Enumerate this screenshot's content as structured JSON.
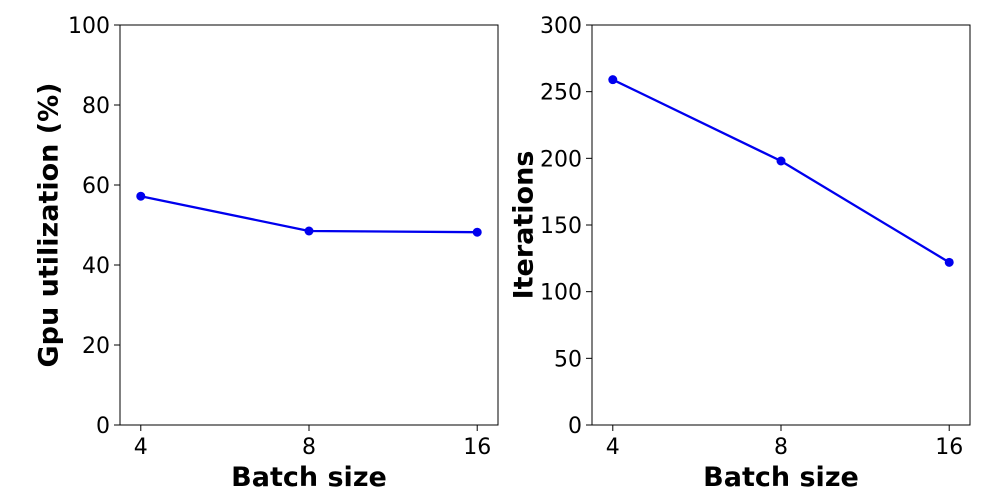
{
  "chart_data": [
    {
      "type": "line",
      "categories": [
        "4",
        "8",
        "16"
      ],
      "x": [
        4,
        8,
        16
      ],
      "series": [
        {
          "values": [
            57.2,
            48.5,
            48.2
          ],
          "color": "#0000ee"
        }
      ],
      "xlabel": "Batch size",
      "ylabel": "Gpu utilization (%)",
      "ylim": [
        0,
        100
      ],
      "yticks": [
        "0",
        "20",
        "40",
        "60",
        "80",
        "100"
      ],
      "grid": false
    },
    {
      "type": "line",
      "categories": [
        "4",
        "8",
        "16"
      ],
      "x": [
        4,
        8,
        16
      ],
      "series": [
        {
          "values": [
            259,
            198,
            122
          ],
          "color": "#0000ee"
        }
      ],
      "xlabel": "Batch size",
      "ylabel": "Iterations",
      "ylim": [
        0,
        300
      ],
      "yticks": [
        "0",
        "50",
        "100",
        "150",
        "200",
        "250",
        "300"
      ],
      "grid": false
    }
  ]
}
